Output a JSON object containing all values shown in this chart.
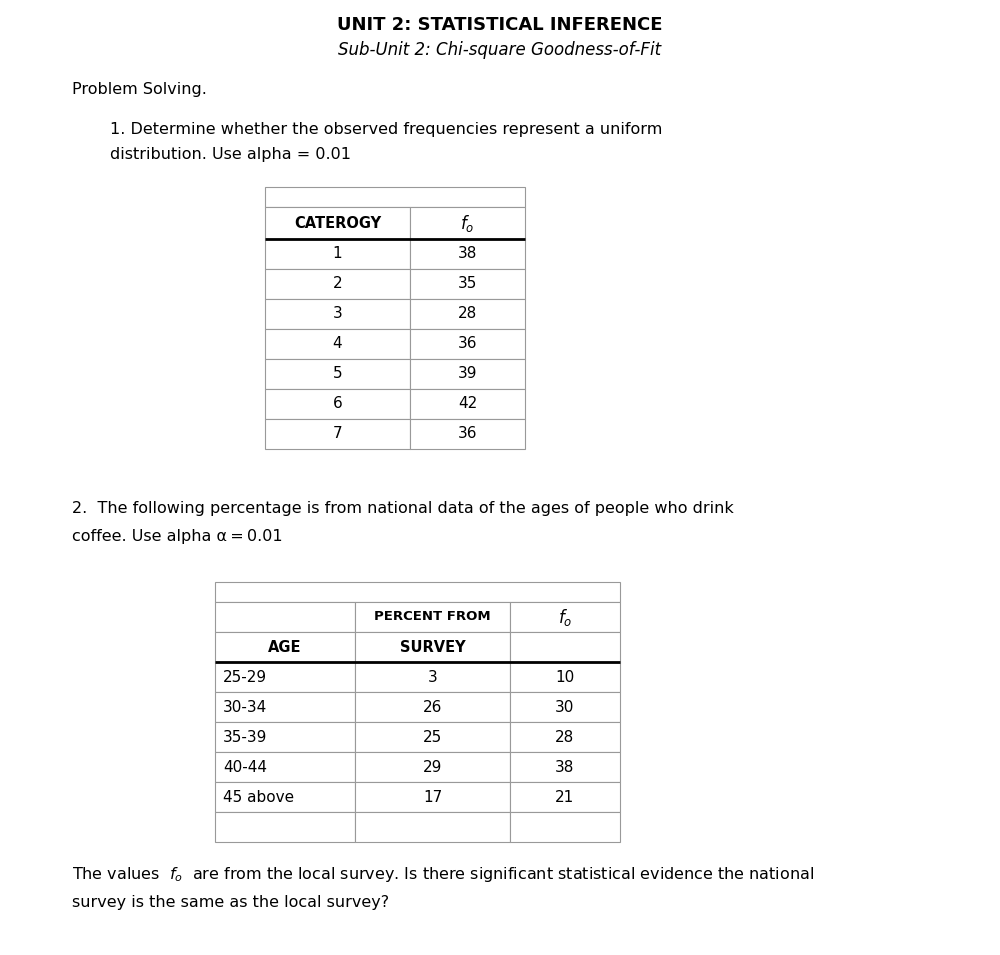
{
  "title": "UNIT 2: STATISTICAL INFERENCE",
  "subtitle": "Sub-Unit 2: Chi-square Goodness-of-Fit",
  "problem_solving": "Problem Solving.",
  "problem1_line1": "1. Determine whether the observed frequencies represent a uniform",
  "problem1_line2": "distribution. Use alpha = 0.01",
  "table1_col_headers": [
    "CATEROGY",
    "fo"
  ],
  "table1_data": [
    [
      "1",
      "38"
    ],
    [
      "2",
      "35"
    ],
    [
      "3",
      "28"
    ],
    [
      "4",
      "36"
    ],
    [
      "5",
      "39"
    ],
    [
      "6",
      "42"
    ],
    [
      "7",
      "36"
    ]
  ],
  "problem2_line1": "2.  The following percentage is from national data of the ages of people who drink",
  "problem2_line2": "coffee. Use alpha α = 0.01",
  "table2_header_row1_col2": "PERCENT FROM",
  "table2_header_row1_col3": "fo",
  "table2_header_row2_col1": "AGE",
  "table2_header_row2_col2": "SURVEY",
  "table2_data": [
    [
      "25-29",
      "3",
      "10"
    ],
    [
      "30-34",
      "26",
      "30"
    ],
    [
      "35-39",
      "25",
      "28"
    ],
    [
      "40-44",
      "29",
      "38"
    ],
    [
      "45 above",
      "17",
      "21"
    ]
  ],
  "footer_line1": "The values  fo  are from the local survey. Is there significant statistical evidence the national",
  "footer_line2": "survey is the same as the local survey?",
  "bg_color": "#ffffff",
  "cell_bg": "#ffffff",
  "border_color": "#999999",
  "font_color": "#000000"
}
